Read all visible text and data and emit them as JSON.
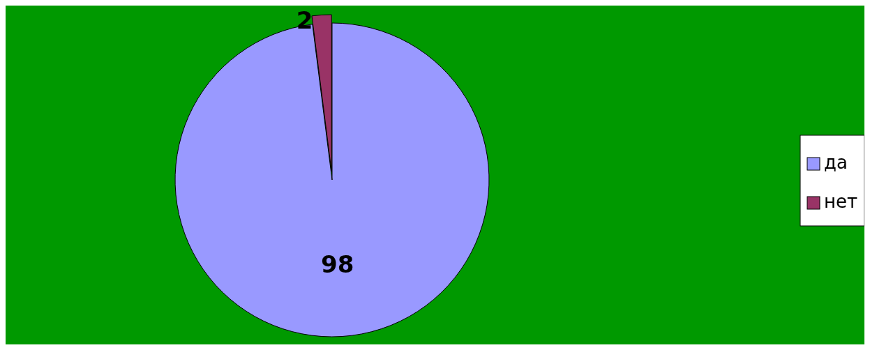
{
  "chart_data": {
    "type": "pie",
    "categories": [
      "да",
      "нет"
    ],
    "values": [
      98,
      2
    ],
    "colors": [
      "#9999ff",
      "#993366"
    ],
    "data_labels": true,
    "legend": "right"
  }
}
